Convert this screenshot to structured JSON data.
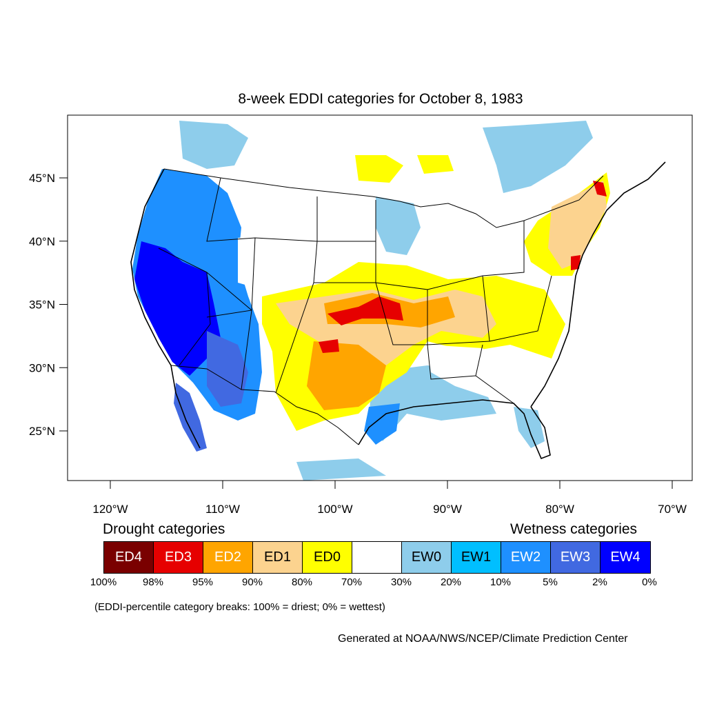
{
  "title": "8-week EDDI categories for October 8, 1983",
  "axes": {
    "y_ticks": [
      {
        "value": 45,
        "label": "45°N"
      },
      {
        "value": 40,
        "label": "40°N"
      },
      {
        "value": 35,
        "label": "35°N"
      },
      {
        "value": 30,
        "label": "30°N"
      },
      {
        "value": 25,
        "label": "25°N"
      }
    ],
    "x_ticks": [
      {
        "value": -120,
        "label": "120°W"
      },
      {
        "value": -110,
        "label": "110°W"
      },
      {
        "value": -100,
        "label": "100°W"
      },
      {
        "value": -90,
        "label": "90°W"
      },
      {
        "value": -80,
        "label": "80°W"
      },
      {
        "value": -70,
        "label": "70°W"
      }
    ]
  },
  "legend": {
    "drought_title": "Drought categories",
    "wetness_title": "Wetness categories",
    "categories": [
      {
        "label": "ED4",
        "color": "#7a0000",
        "text_color": "#ffffff"
      },
      {
        "label": "ED3",
        "color": "#e60000",
        "text_color": "#ffffff"
      },
      {
        "label": "ED2",
        "color": "#ffa500",
        "text_color": "#ffffff"
      },
      {
        "label": "ED1",
        "color": "#fcd38f",
        "text_color": "#000000"
      },
      {
        "label": "ED0",
        "color": "#ffff00",
        "text_color": "#000000"
      },
      {
        "label": "",
        "color": "#ffffff",
        "text_color": "#000000"
      },
      {
        "label": "EW0",
        "color": "#8ecdeb",
        "text_color": "#000000"
      },
      {
        "label": "EW1",
        "color": "#00bfff",
        "text_color": "#000000"
      },
      {
        "label": "EW2",
        "color": "#1e90ff",
        "text_color": "#ffffff"
      },
      {
        "label": "EW3",
        "color": "#4169e1",
        "text_color": "#ffffff"
      },
      {
        "label": "EW4",
        "color": "#0000ff",
        "text_color": "#ffffff"
      }
    ],
    "breaks": [
      "100%",
      "98%",
      "95%",
      "90%",
      "80%",
      "70%",
      "30%",
      "20%",
      "10%",
      "5%",
      "2%",
      "0%"
    ],
    "note": "(EDDI-percentile category breaks: 100% = driest; 0% = wettest)"
  },
  "credit": "Generated at NOAA/NWS/NCEP/Climate Prediction Center"
}
